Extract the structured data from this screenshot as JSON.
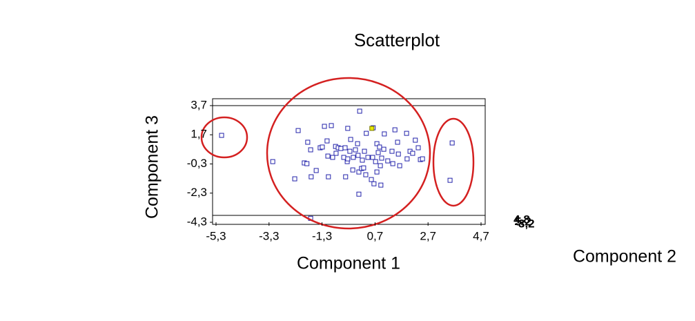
{
  "chart_data": {
    "type": "scatter",
    "title": "Scatterplot",
    "x_label": "Component 1",
    "y_label": "Component 3",
    "z_label": "Component 2",
    "z_tick_labels": [
      "4,8",
      "5,2",
      "-3,2"
    ],
    "xlim": [
      -5.3,
      4.7
    ],
    "ylim": [
      -4.3,
      3.7
    ],
    "xticks": [
      {
        "value": -5.3,
        "label": "-5,3"
      },
      {
        "value": -3.3,
        "label": "-3,3"
      },
      {
        "value": -1.3,
        "label": "-1,3"
      },
      {
        "value": 0.7,
        "label": "0,7"
      },
      {
        "value": 2.7,
        "label": "2,7"
      },
      {
        "value": 4.7,
        "label": "4,7"
      }
    ],
    "yticks": [
      {
        "value": 3.7,
        "label": "3,7"
      },
      {
        "value": 1.7,
        "label": "1,7"
      },
      {
        "value": -0.3,
        "label": "-0,3"
      },
      {
        "value": -2.3,
        "label": "-2,3"
      },
      {
        "value": -4.3,
        "label": "-4,3"
      }
    ],
    "series": [
      {
        "color": "#2222aa",
        "x": [
          -5.09,
          -3.16,
          -2.2,
          -2.33,
          -1.97,
          -1.87,
          -1.84,
          -1.73,
          -1.73,
          -1.71,
          -1.52,
          -1.37,
          -1.29,
          -1.21,
          -1.11,
          -1.08,
          -1.06,
          -0.95,
          -0.9,
          -0.79,
          -0.77,
          -0.69,
          -0.59,
          -0.48,
          -0.43,
          -0.41,
          -0.35,
          -0.33,
          -0.33,
          -0.25,
          -0.22,
          -0.14,
          -0.12,
          -0.04,
          0.04,
          0.06,
          0.09,
          0.09,
          0.12,
          0.19,
          0.22,
          0.27,
          0.3,
          0.35,
          0.37,
          0.43,
          0.56,
          0.61,
          0.63,
          0.66,
          0.72,
          0.77,
          0.77,
          0.82,
          0.87,
          0.9,
          0.92,
          0.95,
          1.03,
          1.05,
          1.18,
          1.34,
          1.37,
          1.45,
          1.55,
          1.58,
          1.63,
          1.89,
          1.91,
          2.02,
          2.12,
          2.22,
          2.33,
          2.41,
          2.49,
          3.61,
          3.53
        ],
        "values": [
          1.66,
          -0.14,
          1.99,
          -1.32,
          -0.23,
          -0.28,
          1.19,
          0.67,
          -4.03,
          -1.18,
          -0.75,
          0.81,
          0.86,
          2.28,
          1.28,
          0.24,
          -1.18,
          2.33,
          0.15,
          0.9,
          0.43,
          0.81,
          0.76,
          0.15,
          0.81,
          -1.18,
          -0.14,
          2.14,
          0.05,
          0.57,
          1.38,
          -0.71,
          0.15,
          0.67,
          1.09,
          0.29,
          -0.85,
          -2.37,
          3.32,
          -0.61,
          -0.04,
          -0.57,
          0.57,
          -1.04,
          1.8,
          0.15,
          -1.37,
          0.15,
          2.18,
          -1.66,
          -0.14,
          1.09,
          -0.85,
          0.48,
          0.86,
          -0.42,
          -1.75,
          0.1,
          0.71,
          1.76,
          -0.09,
          0.57,
          -0.28,
          2.04,
          1.19,
          0.38,
          -0.42,
          1.8,
          0.05,
          0.57,
          0.43,
          1.33,
          0.81,
          0.0,
          0.05,
          1.14,
          -1.42
        ]
      },
      {
        "color": "#e8e800",
        "x": [
          0.58
        ],
        "values": [
          2.14
        ]
      }
    ]
  }
}
